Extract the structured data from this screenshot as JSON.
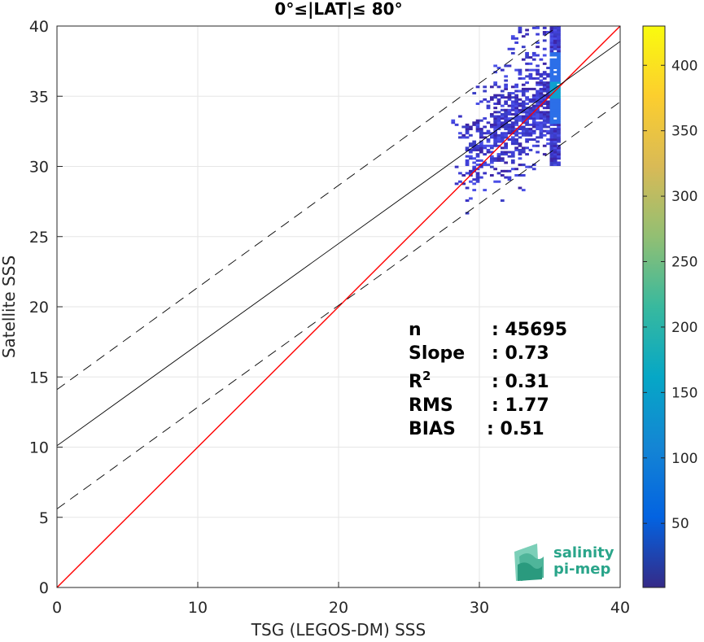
{
  "chart_data": {
    "type": "heatmap",
    "title": "0°≤|LAT|≤ 80°",
    "xlabel": "TSG (LEGOS-DM) SSS",
    "ylabel": "Satellite SSS",
    "xlim": [
      0,
      40
    ],
    "ylim": [
      0,
      40
    ],
    "xticks": [
      "0",
      "10",
      "20",
      "30",
      "40"
    ],
    "yticks": [
      "0",
      "5",
      "10",
      "15",
      "20",
      "25",
      "30",
      "35",
      "40"
    ],
    "grid": true,
    "colorbar": {
      "colormap": "parula",
      "range": [
        1,
        430
      ],
      "ticks": [
        "50",
        "100",
        "150",
        "200",
        "250",
        "300",
        "350",
        "400"
      ]
    },
    "lines": [
      {
        "name": "identity",
        "color": "#ff0000",
        "style": "solid",
        "x": [
          0,
          40
        ],
        "y": [
          0,
          40
        ]
      },
      {
        "name": "regression",
        "color": "#000000",
        "style": "solid",
        "x": [
          0,
          40
        ],
        "y": [
          10.1,
          38.9
        ]
      },
      {
        "name": "upper-bound",
        "color": "#000000",
        "style": "dashed",
        "x": [
          0,
          40
        ],
        "y": [
          14.1,
          43.2
        ]
      },
      {
        "name": "lower-bound",
        "color": "#000000",
        "style": "dashed",
        "x": [
          0,
          40
        ],
        "y": [
          5.6,
          34.6
        ]
      }
    ],
    "density_summary": {
      "x_range": [
        28,
        35.5
      ],
      "y_range": [
        26,
        40
      ],
      "peak": {
        "x": 35.2,
        "y": 35.5
      }
    },
    "stats": [
      {
        "label": "n",
        "value": ": 45695"
      },
      {
        "label": "Slope",
        "value": ": 0.73"
      },
      {
        "label": "R",
        "sup": "2",
        "value": ": 0.31"
      },
      {
        "label": "RMS",
        "value": ": 1.77"
      },
      {
        "label": "BIAS",
        "value": ": 0.51"
      }
    ]
  },
  "logo": {
    "line1": "salinity",
    "line2": "pi-mep"
  }
}
